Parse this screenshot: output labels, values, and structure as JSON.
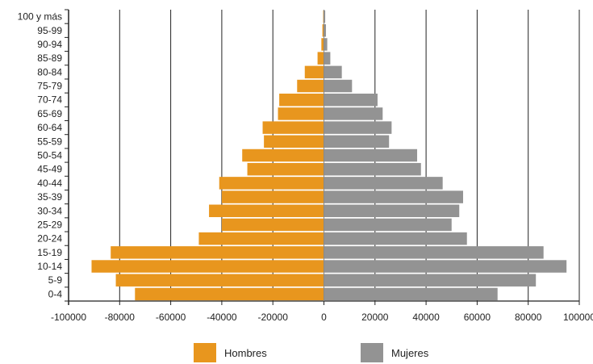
{
  "chart_data": {
    "type": "bar",
    "orientation": "horizontal",
    "categories": [
      "100 y más",
      "95-99",
      "90-94",
      "85-89",
      "80-84",
      "75-79",
      "70-74",
      "65-69",
      "60-64",
      "55-59",
      "50-54",
      "45-49",
      "40-44",
      "35-39",
      "30-34",
      "25-29",
      "20-24",
      "15-19",
      "10-14",
      "5-9",
      "0-4"
    ],
    "series": [
      {
        "name": "Hombres",
        "color": "#E8961E",
        "values": [
          -300,
          -600,
          -1000,
          -2500,
          -7500,
          -10500,
          -17500,
          -18000,
          -24000,
          -23500,
          -32000,
          -30000,
          -41000,
          -40000,
          -45000,
          -40000,
          -49000,
          -83500,
          -91000,
          -81500,
          -74000
        ]
      },
      {
        "name": "Mujeres",
        "color": "#939393",
        "values": [
          500,
          800,
          1300,
          2500,
          7000,
          11000,
          21000,
          23000,
          26500,
          25500,
          36500,
          38000,
          46500,
          54500,
          53000,
          50000,
          56000,
          86000,
          95000,
          83000,
          68000
        ]
      }
    ],
    "xlim": [
      -100000,
      100000
    ],
    "xticks": [
      -100000,
      -80000,
      -60000,
      -40000,
      -20000,
      0,
      20000,
      40000,
      60000,
      80000,
      100000
    ],
    "xtick_labels": [
      "-100000",
      "-80000",
      "-60000",
      "-40000",
      "-20000",
      "0",
      "20000",
      "40000",
      "60000",
      "80000",
      "100000"
    ],
    "grid": "vertical",
    "legend_position": "bottom"
  }
}
